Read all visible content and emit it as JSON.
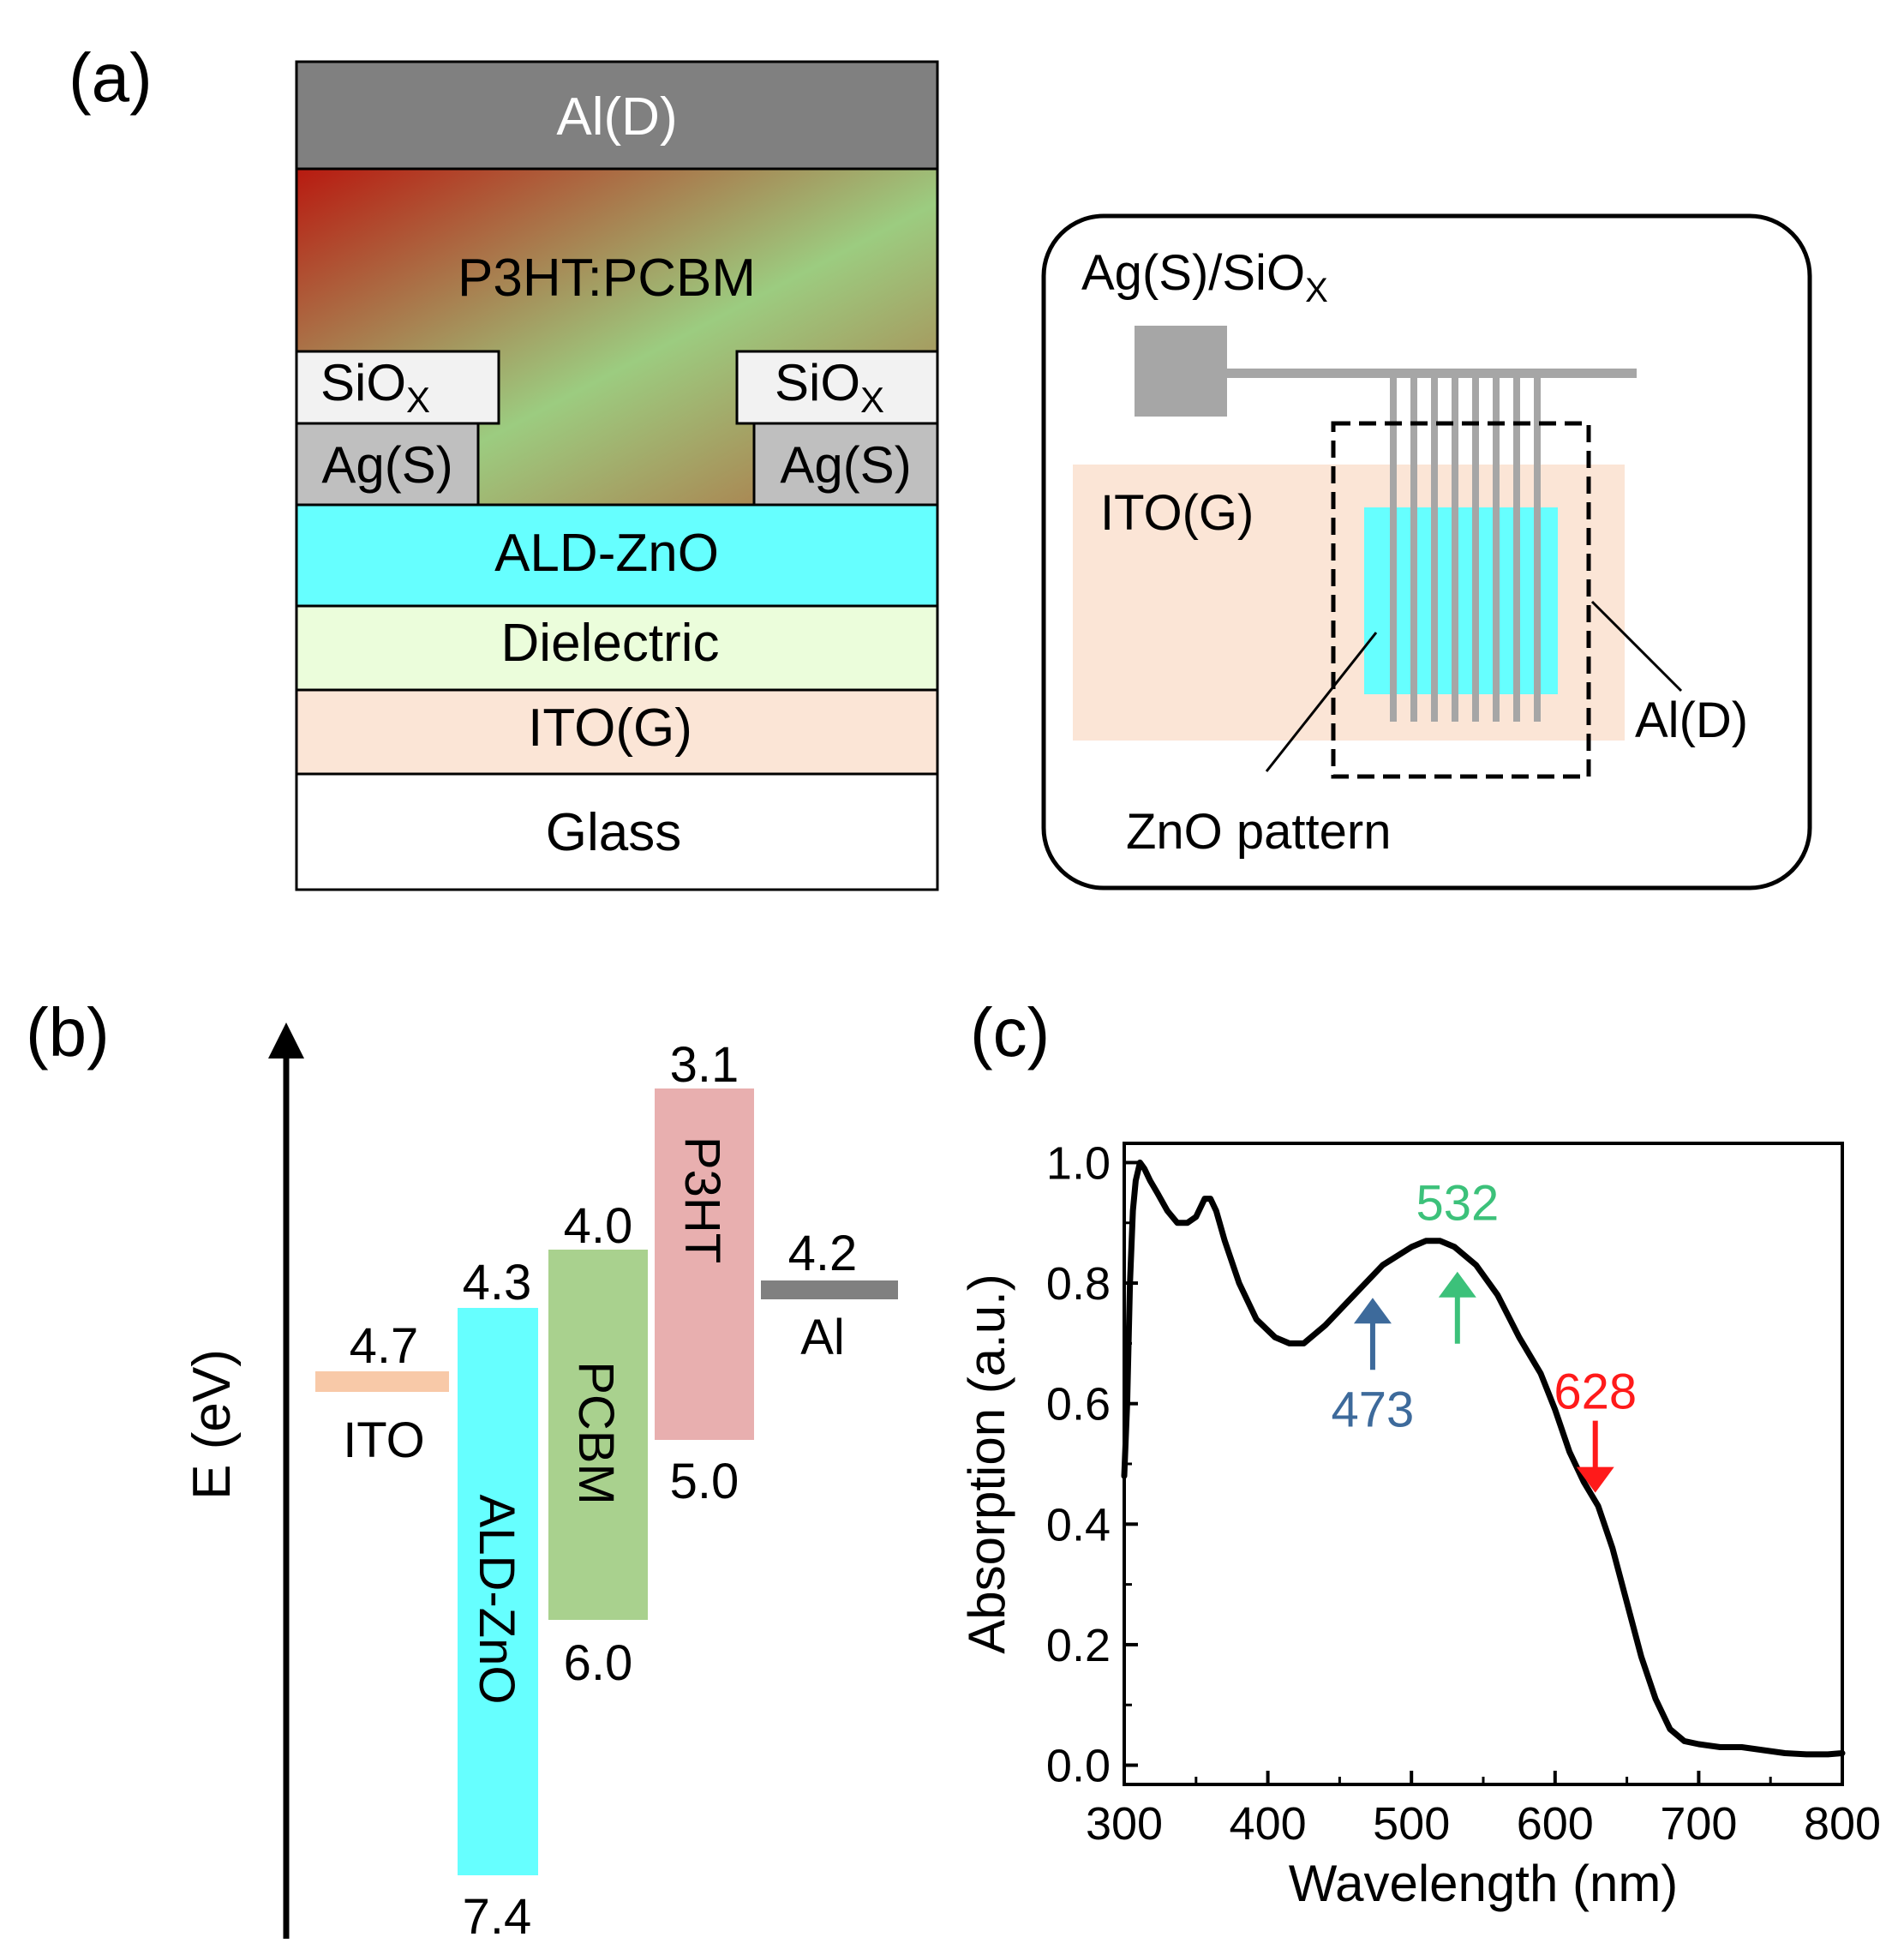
{
  "panel_a": {
    "label": "(a)",
    "stack": {
      "al": "Al(D)",
      "active": "P3HT:PCBM",
      "sio_left": "SiO",
      "sio_left_sub": "X",
      "sio_right": "SiO",
      "sio_right_sub": "X",
      "ag_left": "Ag(S)",
      "ag_right": "Ag(S)",
      "zno": "ALD-ZnO",
      "dielectric": "Dielectric",
      "ito": "ITO(G)",
      "glass": "Glass"
    },
    "layout_view": {
      "source_label": "Ag(S)/SiO",
      "source_label_sub": "X",
      "ito_label": "ITO(G)",
      "al_label": "Al(D)",
      "zno_label": "ZnO pattern"
    }
  },
  "panel_b": {
    "label": "(b)",
    "axis_label": "E (eV)",
    "levels": {
      "ito": {
        "name": "ITO",
        "value": "4.7"
      },
      "zno": {
        "name": "ALD-ZnO",
        "top": "4.3",
        "bottom": "7.4"
      },
      "pcbm": {
        "name": "PCBM",
        "top": "4.0",
        "bottom": "6.0"
      },
      "p3ht": {
        "name": "P3HT",
        "top": "3.1",
        "bottom": "5.0"
      },
      "al": {
        "name": "Al",
        "value": "4.2"
      }
    },
    "colors": {
      "ito": "#f8c9a8",
      "zno": "#66ffff",
      "pcbm": "#a9d18e",
      "p3ht": "#e8afaf",
      "al": "#808080"
    }
  },
  "panel_c": {
    "label": "(c)",
    "annotations": [
      {
        "text": "473",
        "x": 473,
        "color": "#3d6a9b"
      },
      {
        "text": "532",
        "x": 532,
        "color": "#3cc17a"
      },
      {
        "text": "628",
        "x": 628,
        "color": "#ff1a1a"
      }
    ]
  },
  "chart_data": {
    "type": "line",
    "title": "",
    "xlabel": "Wavelength (nm)",
    "ylabel": "Absorption (a.u.)",
    "xlim": [
      300,
      800
    ],
    "ylim": [
      0.0,
      1.0
    ],
    "xticks": [
      "300",
      "400",
      "500",
      "600",
      "700",
      "800"
    ],
    "yticks": [
      "0.0",
      "0.2",
      "0.4",
      "0.6",
      "0.8",
      "1.0"
    ],
    "series": [
      {
        "name": "P3HT:PCBM",
        "x": [
          300,
          302,
          304,
          306,
          308,
          311,
          314,
          318,
          323,
          330,
          337,
          344,
          350,
          356,
          360,
          364,
          370,
          380,
          392,
          405,
          415,
          425,
          440,
          460,
          480,
          500,
          510,
          520,
          530,
          545,
          560,
          575,
          590,
          600,
          610,
          620,
          630,
          640,
          650,
          660,
          670,
          680,
          690,
          700,
          715,
          730,
          745,
          760,
          775,
          790,
          800
        ],
        "y": [
          0.48,
          0.6,
          0.8,
          0.92,
          0.97,
          1.0,
          0.99,
          0.97,
          0.95,
          0.92,
          0.9,
          0.9,
          0.91,
          0.94,
          0.94,
          0.92,
          0.87,
          0.8,
          0.74,
          0.71,
          0.7,
          0.7,
          0.73,
          0.78,
          0.83,
          0.86,
          0.87,
          0.87,
          0.86,
          0.83,
          0.78,
          0.71,
          0.65,
          0.59,
          0.52,
          0.47,
          0.43,
          0.36,
          0.27,
          0.18,
          0.11,
          0.06,
          0.04,
          0.035,
          0.03,
          0.03,
          0.025,
          0.02,
          0.018,
          0.018,
          0.02
        ]
      }
    ]
  }
}
